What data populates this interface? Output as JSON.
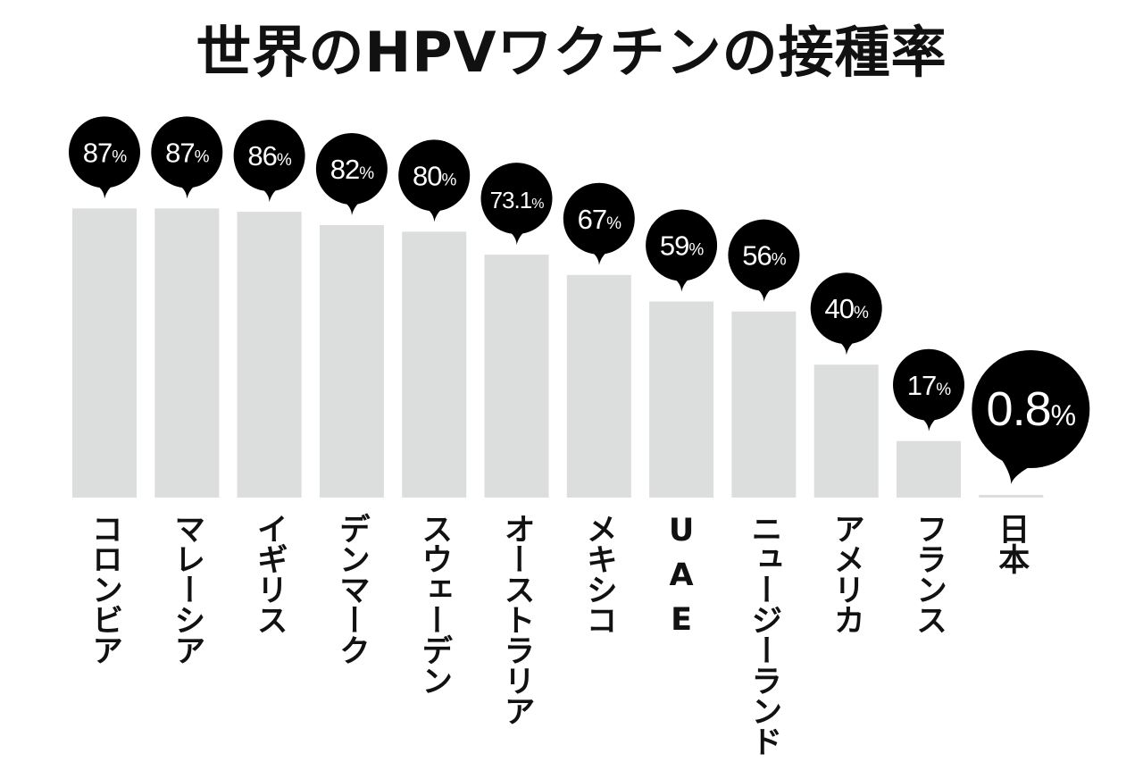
{
  "chart_data": {
    "type": "bar",
    "title": "世界のHPVワクチンの接種率",
    "xlabel": "",
    "ylabel": "",
    "ylim": [
      0,
      100
    ],
    "grid": false,
    "categories": [
      "コロンビア",
      "マレーシア",
      "イギリス",
      "デンマーク",
      "スウェーデン",
      "オーストラリア",
      "メキシコ",
      "UAE",
      "ニュージーランド",
      "アメリカ",
      "フランス",
      "日本"
    ],
    "values": [
      87,
      87,
      86,
      82,
      80,
      73.1,
      67,
      59,
      56,
      40,
      17,
      0.8
    ],
    "data_labels": [
      "87",
      "87",
      "86",
      "82",
      "80",
      "73.1",
      "67",
      "59",
      "56",
      "40",
      "17",
      "0.8"
    ],
    "unit": "%",
    "highlight_index": 11,
    "colors": {
      "bar": "#dcdddd",
      "bubble": "#000000",
      "label_text": "#ffffff"
    }
  }
}
